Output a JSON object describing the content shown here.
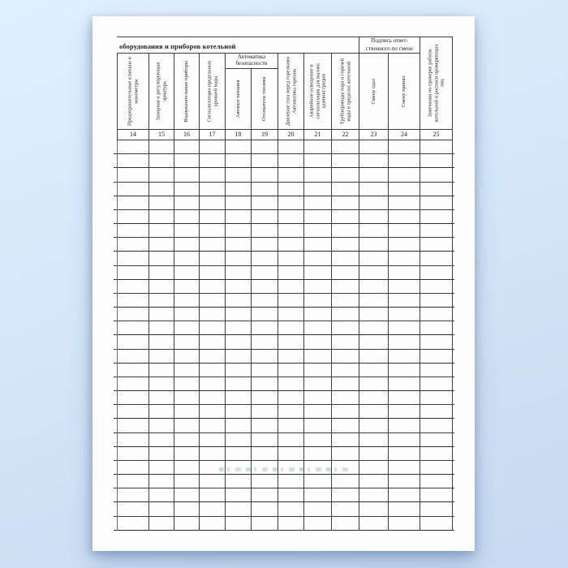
{
  "document": {
    "kind": "scanned boiler-room shift logbook form, continuation sheet",
    "continuation_header": "оборудования и приборов котельной",
    "signature_group": {
      "label": "Подпись ответ-\nственного по смене",
      "columns": [
        "23",
        "24"
      ]
    },
    "safety_group": {
      "label": "Автоматика\nбезопасности",
      "columns": [
        "18",
        "19"
      ]
    }
  },
  "table": {
    "columns": [
      {
        "num": "14",
        "label": "Предохранительные клапаны и манометры",
        "span": "header"
      },
      {
        "num": "15",
        "label": "Запорная и регулирующая арматура",
        "span": "header"
      },
      {
        "num": "16",
        "label": "Водоуказательные приборы",
        "span": "header"
      },
      {
        "num": "17",
        "label": "Сигнализаторы предельных уровней воды",
        "span": "header"
      },
      {
        "num": "18",
        "label": "Автомат питания",
        "span": "sub"
      },
      {
        "num": "19",
        "label": "Отсекатели топлива",
        "span": "sub"
      },
      {
        "num": "20",
        "label": "Давление газа перед горелками Автоматика горения",
        "span": "header"
      },
      {
        "num": "21",
        "label": "Аварийное освещение и сигнализация для вызова администрации",
        "span": "header"
      },
      {
        "num": "22",
        "label": "Трубопроводы пара и горячей воды в пределах котельной",
        "span": "header"
      },
      {
        "num": "23",
        "label": "Смену сдал",
        "span": "header"
      },
      {
        "num": "24",
        "label": "Смену принял",
        "span": "header"
      },
      {
        "num": "25",
        "label": "Замечания по проверке работы котельной и росписи проверяющих лиц",
        "span": "all"
      }
    ],
    "body_rows": 28,
    "body_cell_value": ""
  },
  "colors": {
    "background_top": "#e0f0fd",
    "background_bottom": "#c7daf1",
    "paper": "#fdfdfd",
    "table_line": "#3d3d3d",
    "text": "#242424",
    "watermark_green": "#1e915f",
    "watermark_red": "#af413c"
  }
}
